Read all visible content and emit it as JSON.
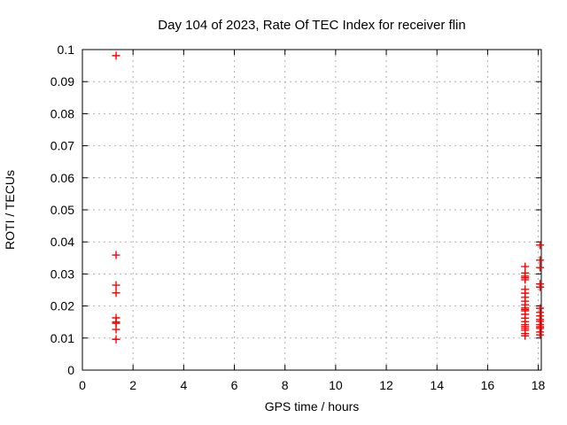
{
  "window": {
    "background": "#ffffff"
  },
  "chart_data": {
    "type": "scatter",
    "title": "Day 104 of 2023, Rate Of TEC Index for receiver flin",
    "xlabel": "GPS time / hours",
    "ylabel": "ROTI / TECUs",
    "xlim": [
      0,
      18.12
    ],
    "ylim": [
      0,
      0.1
    ],
    "xticks": [
      0,
      2,
      4,
      6,
      8,
      10,
      12,
      14,
      16,
      18
    ],
    "xtick_labels": [
      "0",
      "2",
      "4",
      "6",
      "8",
      "10",
      "12",
      "14",
      "16",
      "18"
    ],
    "yticks": [
      0,
      0.01,
      0.02,
      0.03,
      0.04,
      0.05,
      0.06,
      0.07,
      0.08,
      0.09,
      0.1
    ],
    "ytick_labels": [
      "0",
      "0.01",
      "0.02",
      "0.03",
      "0.04",
      "0.05",
      "0.06",
      "0.07",
      "0.08",
      "0.09",
      "0.1"
    ],
    "grid": true,
    "legend": "none",
    "grid_color": "#b0b0b0",
    "marker": {
      "shape": "plus",
      "color": "#ff0000",
      "size": 9
    },
    "series": [
      {
        "points": [
          [
            1.33,
            0.0981
          ],
          [
            1.33,
            0.0359
          ],
          [
            1.33,
            0.0265
          ],
          [
            1.33,
            0.0241
          ],
          [
            1.33,
            0.0163
          ],
          [
            1.33,
            0.015
          ],
          [
            1.33,
            0.0146
          ],
          [
            1.33,
            0.0127
          ],
          [
            1.33,
            0.0096
          ],
          [
            17.48,
            0.0323
          ],
          [
            17.48,
            0.0303
          ],
          [
            17.48,
            0.0293
          ],
          [
            17.48,
            0.0288
          ],
          [
            17.48,
            0.0282
          ],
          [
            17.48,
            0.0252
          ],
          [
            17.48,
            0.024
          ],
          [
            17.48,
            0.0227
          ],
          [
            17.48,
            0.0215
          ],
          [
            17.48,
            0.0204
          ],
          [
            17.48,
            0.0194
          ],
          [
            17.48,
            0.0189
          ],
          [
            17.48,
            0.0185
          ],
          [
            17.48,
            0.0174
          ],
          [
            17.48,
            0.0162
          ],
          [
            17.48,
            0.0151
          ],
          [
            17.48,
            0.0142
          ],
          [
            17.48,
            0.0136
          ],
          [
            17.48,
            0.013
          ],
          [
            17.48,
            0.0124
          ],
          [
            17.48,
            0.0114
          ],
          [
            17.48,
            0.0107
          ],
          [
            18.07,
            0.039
          ],
          [
            18.07,
            0.0343
          ],
          [
            18.07,
            0.032
          ],
          [
            18.07,
            0.0269
          ],
          [
            18.07,
            0.0259
          ],
          [
            18.07,
            0.0193
          ],
          [
            18.07,
            0.018
          ],
          [
            18.07,
            0.0169
          ],
          [
            18.07,
            0.0158
          ],
          [
            18.07,
            0.0152
          ],
          [
            18.07,
            0.0142
          ],
          [
            18.07,
            0.0135
          ],
          [
            18.07,
            0.013
          ],
          [
            18.07,
            0.0119
          ],
          [
            18.07,
            0.011
          ]
        ]
      }
    ]
  }
}
